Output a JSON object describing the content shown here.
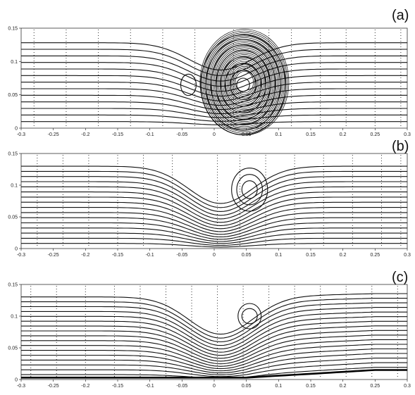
{
  "chart_data": [
    {
      "type": "line",
      "panel_label": "(a)",
      "xlim": [
        -0.3,
        0.3
      ],
      "ylim": [
        0,
        0.15
      ],
      "x_ticks": [
        "-0.3",
        "-0.25",
        "-0.2",
        "-0.15",
        "-0.1",
        "-0.05",
        "0",
        "0.05",
        "0.1",
        "0.15",
        "0.2",
        "0.25",
        "0.3"
      ],
      "y_ticks": [
        "0",
        "0.05",
        "0.1",
        "0.15"
      ],
      "bump_height": 0.0,
      "dip_depth": 0.07,
      "far_field_lines": 13,
      "vortices": [
        {
          "cx": -0.04,
          "cy": 0.065,
          "rings": [
            [
              0.012,
              0.016
            ]
          ]
        },
        {
          "cx": 0.045,
          "cy": 0.065,
          "rings": [
            [
              0.01,
              0.01
            ],
            [
              0.02,
              0.022
            ],
            [
              0.028,
              0.032
            ],
            [
              0.035,
              0.042
            ],
            [
              0.042,
              0.052
            ],
            [
              0.05,
              0.06
            ],
            [
              0.058,
              0.068
            ],
            [
              0.066,
              0.075
            ]
          ],
          "dense": true
        }
      ],
      "probe_x": [
        -0.28,
        -0.23,
        -0.18,
        -0.13,
        -0.08,
        -0.03,
        0.03,
        0.085,
        0.12,
        0.165,
        0.205,
        0.25,
        0.29
      ]
    },
    {
      "type": "line",
      "panel_label": "(b)",
      "xlim": [
        -0.3,
        0.3
      ],
      "ylim": [
        0,
        0.15
      ],
      "x_ticks": [
        "-0.3",
        "-0.25",
        "-0.2",
        "-0.15",
        "-0.1",
        "-0.05",
        "0",
        "0.05",
        "0.1",
        "0.15",
        "0.2",
        "0.25",
        "0.3"
      ],
      "y_ticks": [
        "0",
        "0.05",
        "0.1",
        "0.15"
      ],
      "bump_height": 0.0,
      "dip_depth": 0.1,
      "far_field_lines": 16,
      "vortices": [
        {
          "cx": 0.055,
          "cy": 0.093,
          "rings": [
            [
              0.012,
              0.014
            ],
            [
              0.02,
              0.024
            ],
            [
              0.028,
              0.034
            ]
          ]
        }
      ],
      "probe_x": [
        -0.275,
        -0.235,
        -0.195,
        -0.15,
        -0.11,
        -0.065,
        0.005,
        0.04,
        0.08,
        0.125,
        0.17,
        0.215,
        0.26,
        0.29
      ]
    },
    {
      "type": "line",
      "panel_label": "(c)",
      "xlim": [
        -0.3,
        0.3
      ],
      "ylim": [
        0,
        0.15
      ],
      "x_ticks": [
        "-0.3",
        "-0.25",
        "-0.2",
        "-0.15",
        "-0.1",
        "-0.05",
        "0",
        "0.05",
        "0.1",
        "0.15",
        "0.2",
        "0.25",
        "0.3"
      ],
      "y_ticks": [
        "0",
        "0.05",
        "0.1",
        "0.15"
      ],
      "bump_height": 0.012,
      "dip_depth": 0.1,
      "far_field_lines": 17,
      "vortices": [
        {
          "cx": 0.055,
          "cy": 0.1,
          "rings": [
            [
              0.012,
              0.012
            ],
            [
              0.018,
              0.02
            ]
          ]
        }
      ],
      "probe_x": [
        -0.285,
        -0.245,
        -0.2,
        -0.155,
        -0.115,
        -0.075,
        -0.035,
        0.005,
        0.045,
        0.085,
        0.125,
        0.165,
        0.205,
        0.245,
        0.285
      ]
    }
  ]
}
